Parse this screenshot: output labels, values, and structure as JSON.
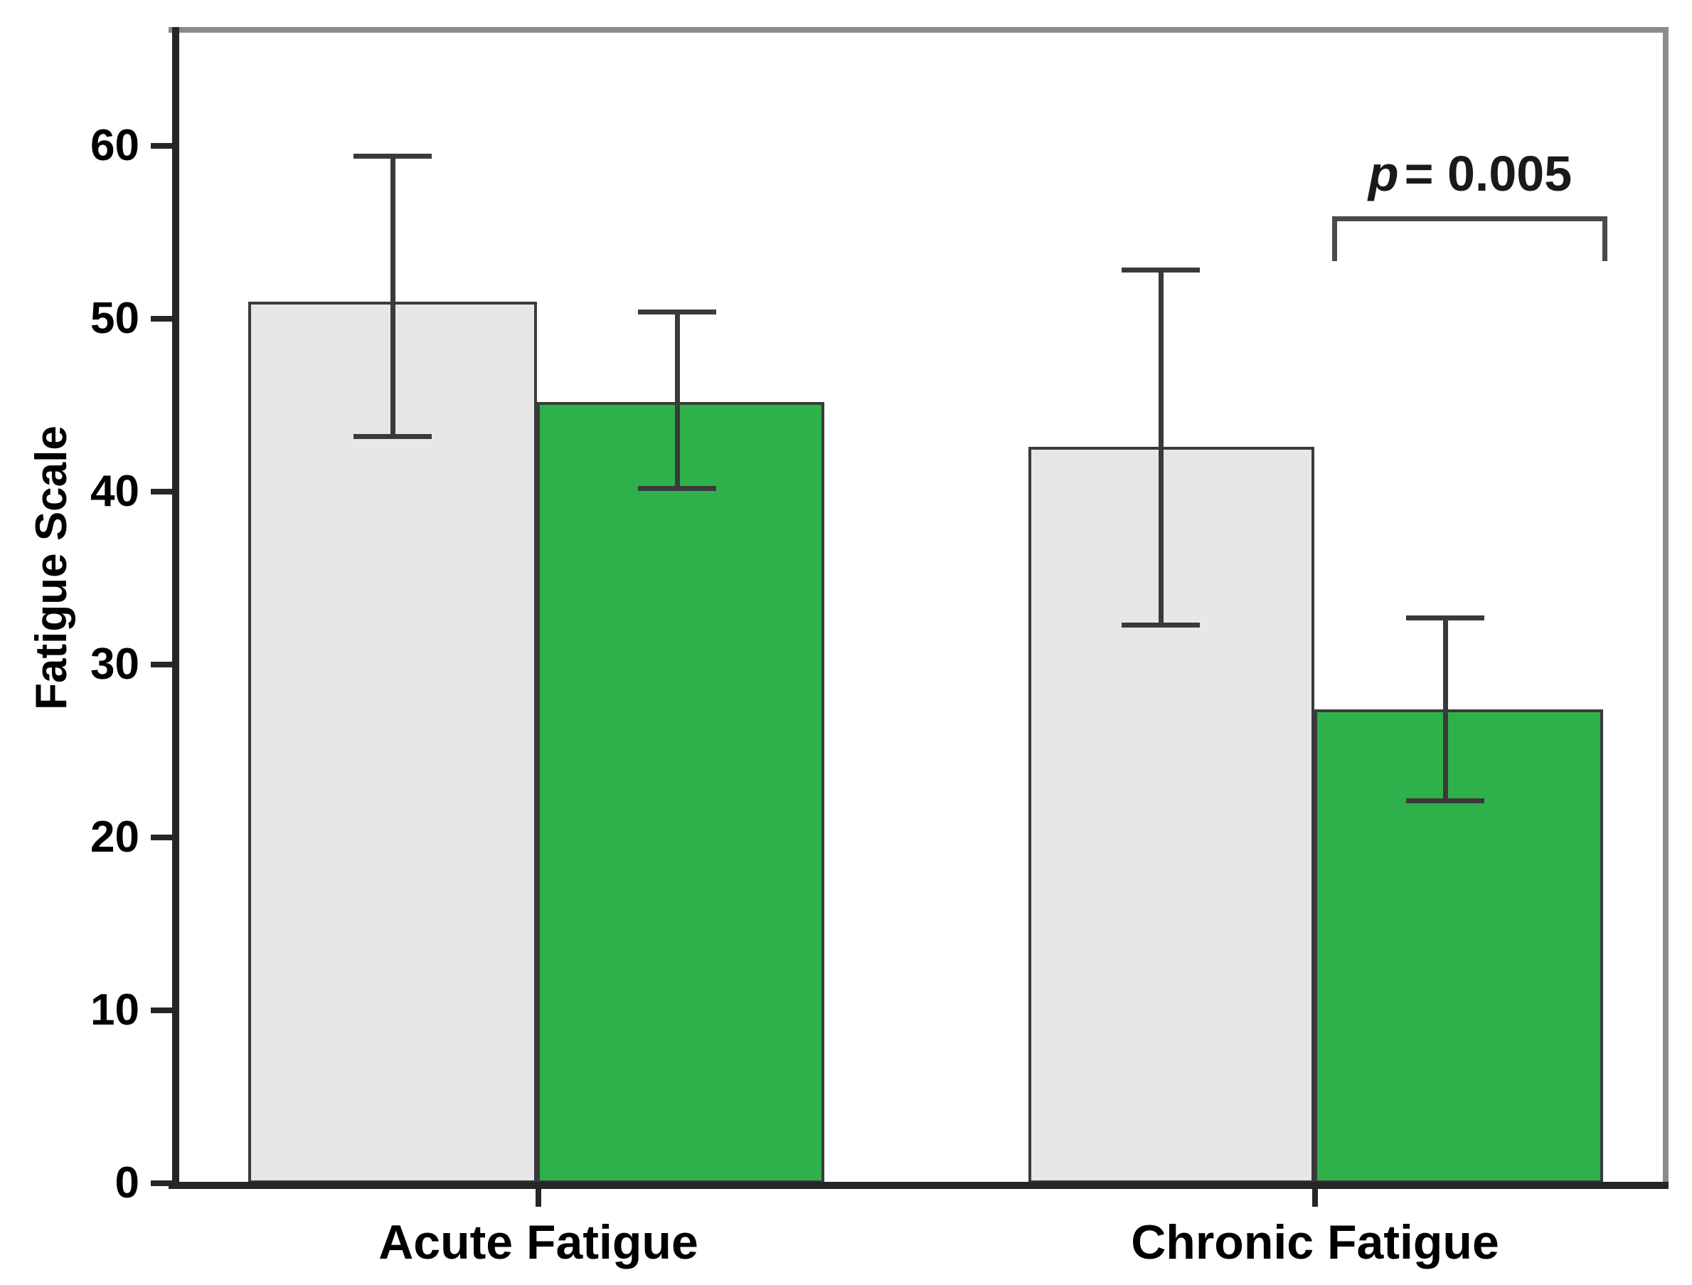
{
  "figure": {
    "annotation": {
      "p_var": "p",
      "p_rest": "= 0.005"
    }
  },
  "chart_data": {
    "type": "bar",
    "title": "",
    "xlabel": "",
    "ylabel": "Fatigue Scale",
    "categories": [
      "Acute Fatigue",
      "Chronic Fatigue"
    ],
    "y_ticks": [
      0,
      10,
      20,
      30,
      40,
      50,
      60
    ],
    "ylim": [
      0,
      66.7
    ],
    "grid": false,
    "legend": "none",
    "series": [
      {
        "name": "gray",
        "color": "#e7e7e7",
        "values": [
          51.0,
          42.6
        ],
        "ci_low": [
          43.2,
          32.3
        ],
        "ci_high": [
          59.4,
          52.8
        ]
      },
      {
        "name": "green",
        "color": "#2eb14b",
        "values": [
          45.2,
          27.4
        ],
        "ci_low": [
          40.2,
          22.1
        ],
        "ci_high": [
          50.4,
          32.7
        ]
      }
    ],
    "significance": {
      "label": "p = 0.005",
      "category": "Chronic Fatigue",
      "connects": [
        "gray bar error bar",
        "green bar error bar"
      ]
    }
  }
}
